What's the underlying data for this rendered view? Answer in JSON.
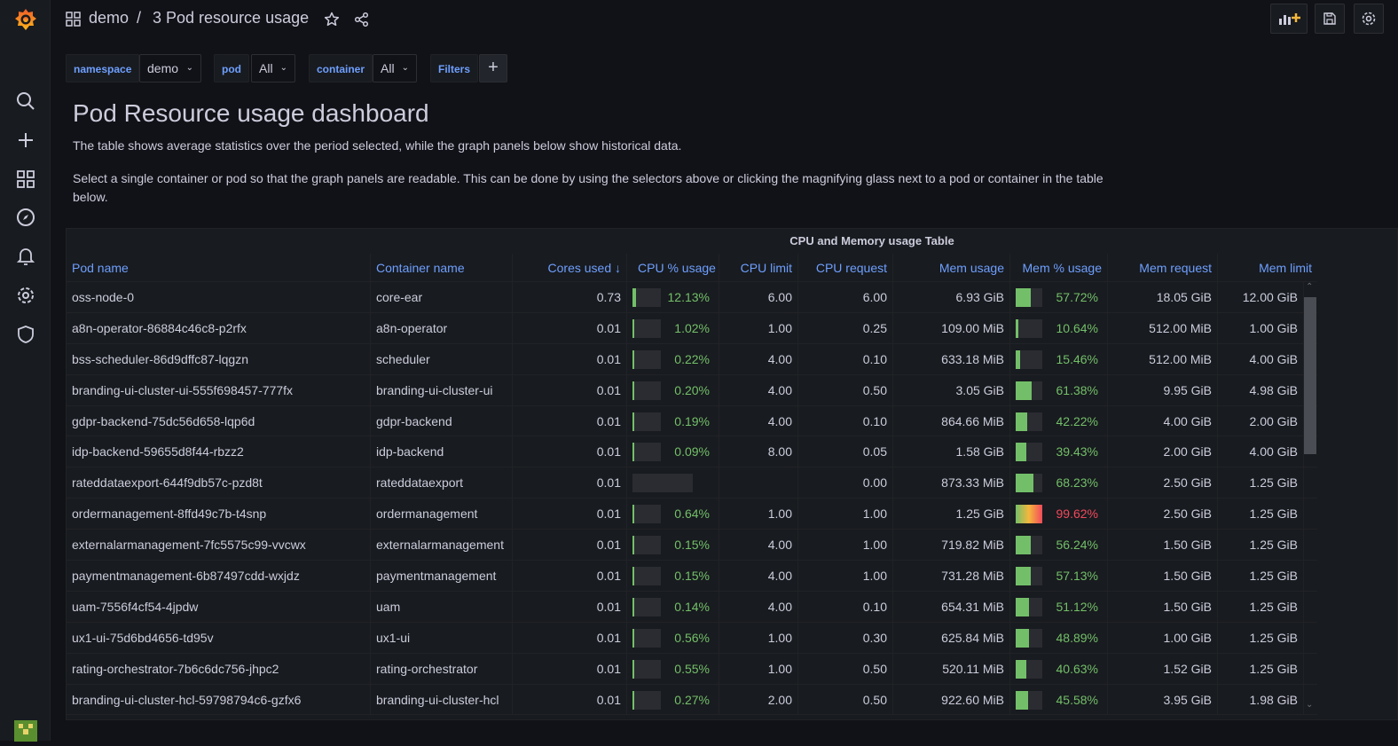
{
  "breadcrumb": {
    "folder": "demo",
    "separator": "/",
    "dashboard": "3 Pod resource usage"
  },
  "variables": [
    {
      "label": "namespace",
      "value": "demo"
    },
    {
      "label": "pod",
      "value": "All"
    },
    {
      "label": "container",
      "value": "All"
    },
    {
      "label": "Filters"
    }
  ],
  "intro": {
    "title": "Pod Resource usage dashboard",
    "p1": "The table shows average statistics over the period selected, while the graph panels below show historical data.",
    "p2": "Select a single container or pod so that the graph panels are readable. This can be done by using the selectors above or clicking the magnifying glass next to a pod or container in the table below."
  },
  "panel": {
    "title": "CPU and Memory usage Table"
  },
  "columns": {
    "pod": "Pod name",
    "container": "Container name",
    "cores": "Cores used",
    "sort_arrow": "↓",
    "cpu_pct": "CPU % usage",
    "cpu_limit": "CPU limit",
    "cpu_request": "CPU request",
    "mem_usage": "Mem usage",
    "mem_pct": "Mem % usage",
    "mem_request": "Mem request",
    "mem_limit": "Mem limit"
  },
  "rows": [
    {
      "pod": "oss-node-0",
      "container": "core-ear",
      "cores": "0.73",
      "cpu_pct": "12.13%",
      "cpu_fill": 0.12,
      "cpu_limit": "6.00",
      "cpu_request": "6.00",
      "mem_usage": "6.93 GiB",
      "mem_pct": "57.72%",
      "mem_fill": 0.58,
      "mem_request": "18.05 GiB",
      "mem_limit": "12.00 GiB"
    },
    {
      "pod": "a8n-operator-86884c46c8-p2rfx",
      "container": "a8n-operator",
      "cores": "0.01",
      "cpu_pct": "1.02%",
      "cpu_fill": 0.01,
      "cpu_limit": "1.00",
      "cpu_request": "0.25",
      "mem_usage": "109.00 MiB",
      "mem_pct": "10.64%",
      "mem_fill": 0.11,
      "mem_request": "512.00 MiB",
      "mem_limit": "1.00 GiB"
    },
    {
      "pod": "bss-scheduler-86d9dffc87-lqgzn",
      "container": "scheduler",
      "cores": "0.01",
      "cpu_pct": "0.22%",
      "cpu_fill": 0.0,
      "cpu_limit": "4.00",
      "cpu_request": "0.10",
      "mem_usage": "633.18 MiB",
      "mem_pct": "15.46%",
      "mem_fill": 0.15,
      "mem_request": "512.00 MiB",
      "mem_limit": "4.00 GiB"
    },
    {
      "pod": "branding-ui-cluster-ui-555f698457-777fx",
      "container": "branding-ui-cluster-ui",
      "cores": "0.01",
      "cpu_pct": "0.20%",
      "cpu_fill": 0.0,
      "cpu_limit": "4.00",
      "cpu_request": "0.50",
      "mem_usage": "3.05 GiB",
      "mem_pct": "61.38%",
      "mem_fill": 0.61,
      "mem_request": "9.95 GiB",
      "mem_limit": "4.98 GiB"
    },
    {
      "pod": "gdpr-backend-75dc56d658-lqp6d",
      "container": "gdpr-backend",
      "cores": "0.01",
      "cpu_pct": "0.19%",
      "cpu_fill": 0.0,
      "cpu_limit": "4.00",
      "cpu_request": "0.10",
      "mem_usage": "864.66 MiB",
      "mem_pct": "42.22%",
      "mem_fill": 0.42,
      "mem_request": "4.00 GiB",
      "mem_limit": "2.00 GiB"
    },
    {
      "pod": "idp-backend-59655d8f44-rbzz2",
      "container": "idp-backend",
      "cores": "0.01",
      "cpu_pct": "0.09%",
      "cpu_fill": 0.0,
      "cpu_limit": "8.00",
      "cpu_request": "0.05",
      "mem_usage": "1.58 GiB",
      "mem_pct": "39.43%",
      "mem_fill": 0.39,
      "mem_request": "2.00 GiB",
      "mem_limit": "4.00 GiB"
    },
    {
      "pod": "rateddataexport-644f9db57c-pzd8t",
      "container": "rateddataexport",
      "cores": "0.01",
      "cpu_pct": "",
      "cpu_fill": 0.0,
      "cpu_limit": "",
      "cpu_request": "0.00",
      "mem_usage": "873.33 MiB",
      "mem_pct": "68.23%",
      "mem_fill": 0.68,
      "mem_request": "2.50 GiB",
      "mem_limit": "1.25 GiB"
    },
    {
      "pod": "ordermanagement-8ffd49c7b-t4snp",
      "container": "ordermanagement",
      "cores": "0.01",
      "cpu_pct": "0.64%",
      "cpu_fill": 0.01,
      "cpu_limit": "1.00",
      "cpu_request": "1.00",
      "mem_usage": "1.25 GiB",
      "mem_pct": "99.62%",
      "mem_fill": 1.0,
      "mem_request": "2.50 GiB",
      "mem_limit": "1.25 GiB"
    },
    {
      "pod": "externalarmanagement-7fc5575c99-vvcwx",
      "container": "externalarmanagement",
      "cores": "0.01",
      "cpu_pct": "0.15%",
      "cpu_fill": 0.0,
      "cpu_limit": "4.00",
      "cpu_request": "1.00",
      "mem_usage": "719.82 MiB",
      "mem_pct": "56.24%",
      "mem_fill": 0.56,
      "mem_request": "1.50 GiB",
      "mem_limit": "1.25 GiB"
    },
    {
      "pod": "paymentmanagement-6b87497cdd-wxjdz",
      "container": "paymentmanagement",
      "cores": "0.01",
      "cpu_pct": "0.15%",
      "cpu_fill": 0.0,
      "cpu_limit": "4.00",
      "cpu_request": "1.00",
      "mem_usage": "731.28 MiB",
      "mem_pct": "57.13%",
      "mem_fill": 0.57,
      "mem_request": "1.50 GiB",
      "mem_limit": "1.25 GiB"
    },
    {
      "pod": "uam-7556f4cf54-4jpdw",
      "container": "uam",
      "cores": "0.01",
      "cpu_pct": "0.14%",
      "cpu_fill": 0.0,
      "cpu_limit": "4.00",
      "cpu_request": "0.10",
      "mem_usage": "654.31 MiB",
      "mem_pct": "51.12%",
      "mem_fill": 0.51,
      "mem_request": "1.50 GiB",
      "mem_limit": "1.25 GiB"
    },
    {
      "pod": "ux1-ui-75d6bd4656-td95v",
      "container": "ux1-ui",
      "cores": "0.01",
      "cpu_pct": "0.56%",
      "cpu_fill": 0.01,
      "cpu_limit": "1.00",
      "cpu_request": "0.30",
      "mem_usage": "625.84 MiB",
      "mem_pct": "48.89%",
      "mem_fill": 0.49,
      "mem_request": "1.00 GiB",
      "mem_limit": "1.25 GiB"
    },
    {
      "pod": "rating-orchestrator-7b6c6dc756-jhpc2",
      "container": "rating-orchestrator",
      "cores": "0.01",
      "cpu_pct": "0.55%",
      "cpu_fill": 0.01,
      "cpu_limit": "1.00",
      "cpu_request": "0.50",
      "mem_usage": "520.11 MiB",
      "mem_pct": "40.63%",
      "mem_fill": 0.41,
      "mem_request": "1.52 GiB",
      "mem_limit": "1.25 GiB"
    },
    {
      "pod": "branding-ui-cluster-hcl-59798794c6-gzfx6",
      "container": "branding-ui-cluster-hcl",
      "cores": "0.01",
      "cpu_pct": "0.27%",
      "cpu_fill": 0.0,
      "cpu_limit": "2.00",
      "cpu_request": "0.50",
      "mem_usage": "922.60 MiB",
      "mem_pct": "45.58%",
      "mem_fill": 0.46,
      "mem_request": "3.95 GiB",
      "mem_limit": "1.98 GiB"
    }
  ],
  "colors": {
    "green": "#73bf69",
    "red": "#f2495c",
    "blue": "#6e9fff",
    "orange": "#f5b73d"
  }
}
